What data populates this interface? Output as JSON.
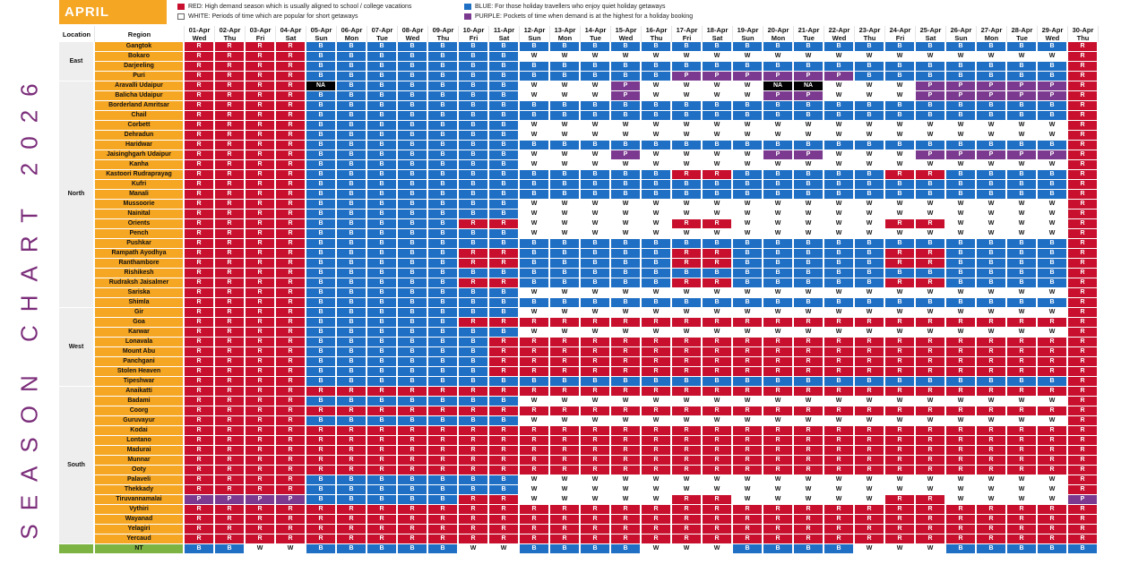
{
  "side_title": "SEASON CHART 2026",
  "month": "APRIL",
  "legend": [
    {
      "code": "R",
      "color": "#c8102e",
      "text": "RED: High demand season which is usually aligned to school / college vacations"
    },
    {
      "code": "B",
      "color": "#1f6fc5",
      "text": "BLUE: For those holiday travellers who enjoy quiet holiday getaways"
    },
    {
      "code": "W",
      "color": "#ffffff",
      "text": "WHITE: Periods of time which are popular for short getaways"
    },
    {
      "code": "P",
      "color": "#7b3a8f",
      "text": "PURPLE: Pockets of time when demand is at the highest for a holiday booking"
    }
  ],
  "chart_data": {
    "type": "heatmap",
    "columns": {
      "location": "Location",
      "region": "Region"
    },
    "dates": [
      "01-Apr",
      "02-Apr",
      "03-Apr",
      "04-Apr",
      "05-Apr",
      "06-Apr",
      "07-Apr",
      "08-Apr",
      "09-Apr",
      "10-Apr",
      "11-Apr",
      "12-Apr",
      "13-Apr",
      "14-Apr",
      "15-Apr",
      "16-Apr",
      "17-Apr",
      "18-Apr",
      "19-Apr",
      "20-Apr",
      "21-Apr",
      "22-Apr",
      "23-Apr",
      "24-Apr",
      "25-Apr",
      "26-Apr",
      "27-Apr",
      "28-Apr",
      "29-Apr",
      "30-Apr"
    ],
    "days": [
      "Wed",
      "Thu",
      "Fri",
      "Sat",
      "Sun",
      "Mon",
      "Tue",
      "Wed",
      "Thu",
      "Fri",
      "Sat",
      "Sun",
      "Mon",
      "Tue",
      "Wed",
      "Thu",
      "Fri",
      "Sat",
      "Sun",
      "Mon",
      "Tue",
      "Wed",
      "Thu",
      "Fri",
      "Sat",
      "Sun",
      "Mon",
      "Tue",
      "Wed",
      "Thu"
    ],
    "groups": [
      {
        "location": "East",
        "rows": [
          {
            "region": "Gangtok",
            "v": "RRRRBBBBBBBBBBBBBBBBBBBBBBBBBR"
          },
          {
            "region": "Bokaro",
            "v": "RRRRBBBBBBBWWWWWWWWWWWWWWWWWWR"
          },
          {
            "region": "Darjeeling",
            "v": "RRRRBBBBBBBBBBBBBBBBBBBBBBBBBR"
          },
          {
            "region": "Puri",
            "v": "RRRRBBBBBBBBBBBBPPPPPPBBBBBBBR"
          }
        ]
      },
      {
        "location": "North",
        "rows": [
          {
            "region": "Aravalli Udaipur",
            "v": [
              "R",
              "R",
              "R",
              "R",
              "NA",
              "B",
              "B",
              "B",
              "B",
              "B",
              "B",
              "W",
              "W",
              "W",
              "P",
              "W",
              "W",
              "W",
              "W",
              "NA",
              "NA",
              "W",
              "W",
              "W",
              "P",
              "P",
              "P",
              "P",
              "P",
              "R"
            ]
          },
          {
            "region": "Balicha Udaipur",
            "v": "RRRRBBBBBBBWWWPWWWWPPWWWPPPPPR"
          },
          {
            "region": "Borderland Amritsar",
            "v": "RRRRBBBBBBBBBBBBBBBBBBBBBBBBBR"
          },
          {
            "region": "Chail",
            "v": "RRRRBBBBBBBBBBBBBBBBBBBBBBBBBR"
          },
          {
            "region": "Corbett",
            "v": "RRRRBBBBBBBWWWWWWWWWWWWWWWWWWR"
          },
          {
            "region": "Dehradun",
            "v": "RRRRBBBBBBBWWWWWWWWWWWWWWWWWWR"
          },
          {
            "region": "Haridwar",
            "v": "RRRRBBBBBBBBBBBBBBBBBBBBBBBBBR"
          },
          {
            "region": "Jaisinghgarh Udaipur",
            "v": "RRRRBBBBBBBWWWPWWWWPPWWWPPPPPR"
          },
          {
            "region": "Kanha",
            "v": "RRRRBBBBBBBWWWWWWWWWWWWWWWWWWR"
          },
          {
            "region": "Kastoori Rudraprayag",
            "v": "RRRRBBBBBBBBBBBBRRBBBBBRRBBBBR"
          },
          {
            "region": "Kufri",
            "v": "RRRRBBBBBBBBBBBBBBBBBBBBBBBBBR"
          },
          {
            "region": "Manali",
            "v": "RRRRBBBBBBBBBBBBBBBBBBBBBBBBBR"
          },
          {
            "region": "Mussoorie",
            "v": "RRRRBBBBBBBWWWWWWWWWWWWWWWWWWR"
          },
          {
            "region": "Nainital",
            "v": "RRRRBBBBBBBWWWWWWWWWWWWWWWWWWR"
          },
          {
            "region": "Orients",
            "v": "RRRRBBBBBRRWWWWWRRWWWWWRRWWWWR"
          },
          {
            "region": "Pench",
            "v": "RRRRBBBBBBBWWWWWWWWWWWWWWWWWWR"
          },
          {
            "region": "Pushkar",
            "v": "RRRRBBBBBBBBBBBBBBBBBBBBBBBBBR"
          },
          {
            "region": "Rampath Ayodhya",
            "v": "RRRRBBBBBRRBBBBBRRBBBBBRRBBBBR"
          },
          {
            "region": "Ranthambore",
            "v": "RRRRBBBBBRRBBBBBRRBBBBBRRBBBBR"
          },
          {
            "region": "Rishikesh",
            "v": "RRRRBBBBBBBBBBBBBBBBBBBBBBBBBR"
          },
          {
            "region": "Rudraksh Jaisalmer",
            "v": "RRRRBBBBBRRBBBBBRRBBBBBRRBBBBR"
          },
          {
            "region": "Sariska",
            "v": "RRRRBBBBBBBWWWWWWWWWWWWWWWWWWR"
          },
          {
            "region": "Shimla",
            "v": "RRRRBBBBBBBBBBBBBBBBBBBBBBBBBR"
          }
        ]
      },
      {
        "location": "West",
        "rows": [
          {
            "region": "Gir",
            "v": "RRRRBBBBBBBWWWWWWWWWWWWWWWWWWR"
          },
          {
            "region": "Goa",
            "v": "RRRRBBBBBRRRRRRRRRRRRRRRRRRRRR"
          },
          {
            "region": "Karwar",
            "v": "RRRRBBBBBBBWWWWWWWWWWWWWWWWWWR"
          },
          {
            "region": "Lonavala",
            "v": "RRRRBBBBBBRRRRRRRRRRRRRRRRRRRR"
          },
          {
            "region": "Mount Abu",
            "v": "RRRRBBBBBBRRRRRRRRRRRRRRRRRRRR"
          },
          {
            "region": "Panchgani",
            "v": "RRRRBBBBBBRRRRRRRRRRRRRRRRRRRR"
          },
          {
            "region": "Stolen Heaven",
            "v": "RRRRBBBBBBRRRRRRRRRRRRRRRRRRRR"
          },
          {
            "region": "Tipeshwar",
            "v": "RRRRBBBBBBBBBBBBBBBBBBBBBBBBBR"
          }
        ]
      },
      {
        "location": "South",
        "rows": [
          {
            "region": "Anaikatti",
            "v": "RRRRRRRRRRRRRRRRRRRRRRRRRRRRRR"
          },
          {
            "region": "Badami",
            "v": "RRRRBBBBBBBWWWWWWWWWWWWWWWWWWR"
          },
          {
            "region": "Coorg",
            "v": "RRRRRRRRRRRRRRRRRRRRRRRRRRRRRR"
          },
          {
            "region": "Guruvayur",
            "v": "RRRRBBBBBBBWWWWWWWWWWWWWWWWWWR"
          },
          {
            "region": "Kodai",
            "v": "RRRRRRRRRRRRRRRRRRRRRRRRRRRRRR"
          },
          {
            "region": "Lontano",
            "v": "RRRRRRRRRRRRRRRRRRRRRRRRRRRRRR"
          },
          {
            "region": "Madurai",
            "v": "RRRRRRRRRRRRRRRRRRRRRRRRRRRRRR"
          },
          {
            "region": "Munnar",
            "v": "RRRRRRRRRRRRRRRRRRRRRRRRRRRRRR"
          },
          {
            "region": "Ooty",
            "v": "RRRRRRRRRRRRRRRRRRRRRRRRRRRRRR"
          },
          {
            "region": "Palaveli",
            "v": "RRRRBBBBBBBWWWWWWWWWWWWWWWWWWR"
          },
          {
            "region": "Thekkady",
            "v": "RRRRBBBBBBBWWWWWWWWWWWWWWWWWWR"
          },
          {
            "region": "Tiruvannamalai",
            "v": "PPPPBBBBBRRWWWWWRRWWWWWRRWWWWP"
          },
          {
            "region": "Vythiri",
            "v": "RRRRRRRRRRRRRRRRRRRRRRRRRRRRRR"
          },
          {
            "region": "Wayanad",
            "v": "RRRRRRRRRRRRRRRRRRRRRRRRRRRRRR"
          },
          {
            "region": "Yelagiri",
            "v": "RRRRRRRRRRRRRRRRRRRRRRRRRRRRRR"
          },
          {
            "region": "Yercaud",
            "v": "RRRRRRRRRRRRRRRRRRRRRRRRRRRRRR"
          }
        ]
      },
      {
        "location": "",
        "rows": [
          {
            "region": "NT",
            "v": "BBWWBBBBBWWBBBBWWWBBBBWWWBBBBB"
          }
        ]
      }
    ]
  }
}
